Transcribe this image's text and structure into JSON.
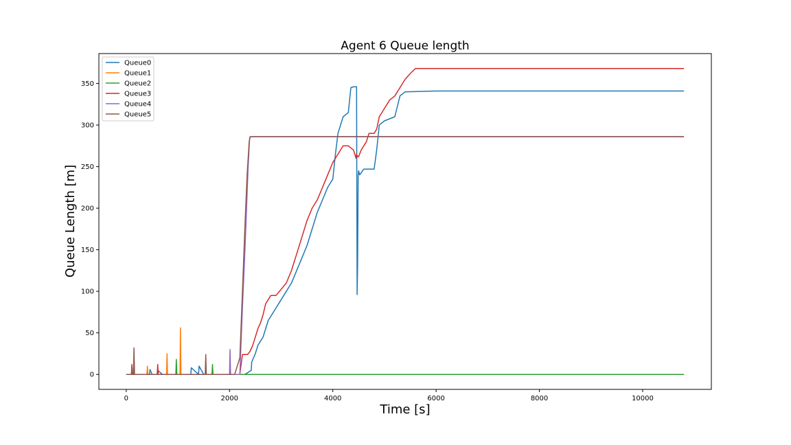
{
  "chart_data": {
    "type": "line",
    "title": "Agent 6 Queue length",
    "xlabel": "Time [s]",
    "ylabel": "Queue Length [m]",
    "xlim": [
      -530,
      11330
    ],
    "ylim": [
      -18,
      386
    ],
    "x_ticks": [
      0,
      2000,
      4000,
      6000,
      8000,
      10000
    ],
    "y_ticks": [
      0,
      50,
      100,
      150,
      200,
      250,
      300,
      350
    ],
    "grid": false,
    "legend": "top-left",
    "series": [
      {
        "name": "Queue0",
        "color": "#1f77b4",
        "x": [
          0,
          450,
          460,
          500,
          600,
          610,
          700,
          1250,
          1260,
          1400,
          1410,
          1500,
          2300,
          2420,
          2430,
          2500,
          2550,
          2650,
          2700,
          2750,
          2800,
          2900,
          3000,
          3100,
          3200,
          3300,
          3400,
          3500,
          3600,
          3700,
          3800,
          3900,
          4000,
          4050,
          4100,
          4200,
          4300,
          4350,
          4400,
          4460,
          4470,
          4480,
          4490,
          4500,
          4520,
          4600,
          4800,
          4850,
          4900,
          5000,
          5200,
          5300,
          5400,
          6000,
          10800
        ],
        "y": [
          0,
          0,
          6,
          0,
          0,
          5,
          0,
          0,
          8,
          0,
          10,
          0,
          0,
          5,
          15,
          25,
          35,
          45,
          55,
          65,
          70,
          80,
          90,
          100,
          110,
          125,
          140,
          155,
          175,
          195,
          210,
          225,
          235,
          265,
          290,
          310,
          315,
          345,
          346,
          346,
          96,
          130,
          240,
          245,
          240,
          247,
          247,
          270,
          300,
          305,
          310,
          335,
          340,
          341,
          341
        ]
      },
      {
        "name": "Queue1",
        "color": "#ff7f0e",
        "x": [
          0,
          400,
          410,
          420,
          780,
          790,
          800,
          1040,
          1050,
          1060,
          10800
        ],
        "y": [
          0,
          0,
          10,
          0,
          0,
          25,
          0,
          0,
          56,
          0,
          0
        ]
      },
      {
        "name": "Queue2",
        "color": "#2ca02c",
        "x": [
          0,
          960,
          970,
          980,
          1660,
          1670,
          1680,
          10800
        ],
        "y": [
          0,
          0,
          18,
          0,
          0,
          12,
          0,
          0
        ]
      },
      {
        "name": "Queue3",
        "color": "#d62728",
        "x": [
          0,
          100,
          110,
          120,
          600,
          610,
          620,
          2200,
          2250,
          2300,
          2350,
          2400,
          2450,
          2500,
          2550,
          2600,
          2650,
          2700,
          2800,
          2900,
          3100,
          3200,
          3300,
          3400,
          3500,
          3600,
          3700,
          3800,
          3900,
          4000,
          4100,
          4200,
          4300,
          4400,
          4450,
          4460,
          4480,
          4500,
          4550,
          4650,
          4700,
          4800,
          4850,
          4900,
          5000,
          5100,
          5200,
          5300,
          5400,
          5500,
          5600,
          5650,
          10800
        ],
        "y": [
          0,
          0,
          12,
          0,
          0,
          12,
          0,
          0,
          24,
          24,
          24,
          28,
          35,
          45,
          55,
          62,
          72,
          85,
          95,
          95,
          110,
          125,
          145,
          165,
          185,
          200,
          210,
          225,
          240,
          255,
          265,
          275,
          275,
          270,
          260,
          265,
          262,
          262,
          270,
          280,
          290,
          290,
          295,
          310,
          320,
          330,
          335,
          345,
          355,
          362,
          368,
          368,
          368
        ]
      },
      {
        "name": "Queue4",
        "color": "#9467bd",
        "x": [
          0,
          2000,
          2010,
          2020,
          2200,
          2250,
          2300,
          2330,
          2360,
          2390,
          2400,
          10800
        ],
        "y": [
          0,
          0,
          30,
          0,
          0,
          80,
          150,
          200,
          250,
          285,
          286,
          286
        ]
      },
      {
        "name": "Queue5",
        "color": "#8c564b",
        "x": [
          0,
          100,
          110,
          120,
          140,
          150,
          160,
          1530,
          1540,
          1550,
          2100,
          2200,
          2250,
          2300,
          2340,
          2380,
          2400,
          10800
        ],
        "y": [
          0,
          0,
          10,
          0,
          0,
          32,
          0,
          0,
          24,
          0,
          0,
          20,
          100,
          180,
          240,
          280,
          286,
          286
        ]
      }
    ]
  }
}
